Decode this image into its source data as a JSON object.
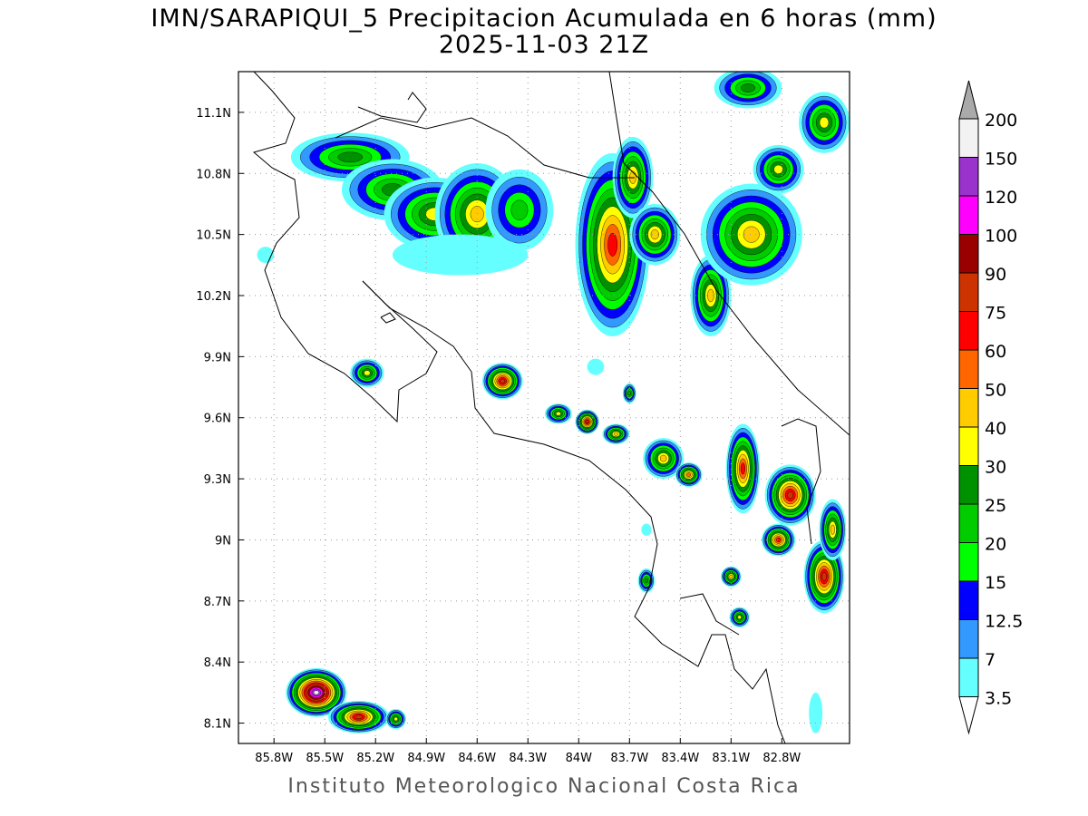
{
  "title": {
    "line1": "IMN/SARAPIQUI_5 Precipitacion Acumulada en 6 horas (mm)",
    "line2": "2025-11-03 21Z"
  },
  "footer": "Instituto Meteorologico Nacional Costa Rica",
  "map": {
    "lon_range": [
      -86.01,
      -82.4
    ],
    "lat_range": [
      8.0,
      11.3
    ],
    "lon_ticks": [
      {
        "v": -85.8,
        "label": "85.8W"
      },
      {
        "v": -85.5,
        "label": "85.5W"
      },
      {
        "v": -85.2,
        "label": "85.2W"
      },
      {
        "v": -84.9,
        "label": "84.9W"
      },
      {
        "v": -84.6,
        "label": "84.6W"
      },
      {
        "v": -84.3,
        "label": "84.3W"
      },
      {
        "v": -84.0,
        "label": "84W"
      },
      {
        "v": -83.7,
        "label": "83.7W"
      },
      {
        "v": -83.4,
        "label": "83.4W"
      },
      {
        "v": -83.1,
        "label": "83.1W"
      },
      {
        "v": -82.8,
        "label": "82.8W"
      }
    ],
    "lat_ticks": [
      {
        "v": 11.1,
        "label": "11.1N"
      },
      {
        "v": 10.8,
        "label": "10.8N"
      },
      {
        "v": 10.5,
        "label": "10.5N"
      },
      {
        "v": 10.2,
        "label": "10.2N"
      },
      {
        "v": 9.9,
        "label": "9.9N"
      },
      {
        "v": 9.6,
        "label": "9.6N"
      },
      {
        "v": 9.3,
        "label": "9.3N"
      },
      {
        "v": 9.0,
        "label": "9N"
      },
      {
        "v": 8.7,
        "label": "8.7N"
      },
      {
        "v": 8.4,
        "label": "8.4N"
      },
      {
        "v": 8.1,
        "label": "8.1N"
      }
    ],
    "grid": "dotted"
  },
  "colorbar": {
    "labels": [
      "200",
      "150",
      "120",
      "100",
      "90",
      "75",
      "60",
      "50",
      "40",
      "30",
      "25",
      "20",
      "15",
      "12.5",
      "7",
      "3.5"
    ],
    "thresholds": [
      3.5,
      7,
      12.5,
      15,
      20,
      25,
      30,
      40,
      50,
      60,
      75,
      90,
      100,
      120,
      150,
      200
    ],
    "colors": [
      "#66ffff",
      "#3399ff",
      "#0000ff",
      "#00ff00",
      "#00cc00",
      "#009100",
      "#ffff00",
      "#ffcc00",
      "#ff6600",
      "#ff0000",
      "#cc3300",
      "#990000",
      "#ff00ff",
      "#9933cc",
      "#f2f2f2"
    ],
    "over_color": "#aaaaaa",
    "under_color": "#ffffff"
  },
  "precip_cells": [
    {
      "lon": -85.35,
      "lat": 10.88,
      "peak": 25,
      "rx": 0.35,
      "ry": 0.12
    },
    {
      "lon": -85.1,
      "lat": 10.72,
      "peak": 25,
      "rx": 0.3,
      "ry": 0.15
    },
    {
      "lon": -84.85,
      "lat": 10.6,
      "peak": 30,
      "rx": 0.3,
      "ry": 0.18
    },
    {
      "lon": -84.6,
      "lat": 10.6,
      "peak": 45,
      "rx": 0.25,
      "ry": 0.25
    },
    {
      "lon": -84.35,
      "lat": 10.62,
      "peak": 20,
      "rx": 0.2,
      "ry": 0.2
    },
    {
      "lon": -84.7,
      "lat": 10.4,
      "peak": 5,
      "rx": 0.4,
      "ry": 0.1
    },
    {
      "lon": -83.8,
      "lat": 10.45,
      "peak": 60,
      "rx": 0.22,
      "ry": 0.45
    },
    {
      "lon": -83.68,
      "lat": 10.78,
      "peak": 45,
      "rx": 0.12,
      "ry": 0.2
    },
    {
      "lon": -83.55,
      "lat": 10.5,
      "peak": 40,
      "rx": 0.15,
      "ry": 0.15
    },
    {
      "lon": -83.22,
      "lat": 10.2,
      "peak": 40,
      "rx": 0.12,
      "ry": 0.2
    },
    {
      "lon": -82.98,
      "lat": 10.5,
      "peak": 40,
      "rx": 0.3,
      "ry": 0.25
    },
    {
      "lon": -82.82,
      "lat": 10.82,
      "peak": 35,
      "rx": 0.15,
      "ry": 0.12
    },
    {
      "lon": -82.55,
      "lat": 11.05,
      "peak": 30,
      "rx": 0.15,
      "ry": 0.15
    },
    {
      "lon": -83.0,
      "lat": 11.22,
      "peak": 25,
      "rx": 0.2,
      "ry": 0.1
    },
    {
      "lon": -85.25,
      "lat": 9.82,
      "peak": 30,
      "rx": 0.1,
      "ry": 0.07
    },
    {
      "lon": -84.45,
      "lat": 9.78,
      "peak": 75,
      "rx": 0.12,
      "ry": 0.09
    },
    {
      "lon": -84.12,
      "lat": 9.62,
      "peak": 30,
      "rx": 0.08,
      "ry": 0.05
    },
    {
      "lon": -83.95,
      "lat": 9.58,
      "peak": 75,
      "rx": 0.07,
      "ry": 0.06
    },
    {
      "lon": -83.78,
      "lat": 9.52,
      "peak": 40,
      "rx": 0.08,
      "ry": 0.05
    },
    {
      "lon": -83.5,
      "lat": 9.4,
      "peak": 40,
      "rx": 0.12,
      "ry": 0.1
    },
    {
      "lon": -83.35,
      "lat": 9.32,
      "peak": 50,
      "rx": 0.08,
      "ry": 0.06
    },
    {
      "lon": -83.03,
      "lat": 9.35,
      "peak": 60,
      "rx": 0.1,
      "ry": 0.22
    },
    {
      "lon": -82.75,
      "lat": 9.22,
      "peak": 75,
      "rx": 0.15,
      "ry": 0.15
    },
    {
      "lon": -82.82,
      "lat": 9.0,
      "peak": 60,
      "rx": 0.1,
      "ry": 0.08
    },
    {
      "lon": -82.55,
      "lat": 8.82,
      "peak": 75,
      "rx": 0.12,
      "ry": 0.18
    },
    {
      "lon": -82.5,
      "lat": 9.05,
      "peak": 40,
      "rx": 0.08,
      "ry": 0.15
    },
    {
      "lon": -83.1,
      "lat": 8.82,
      "peak": 40,
      "rx": 0.06,
      "ry": 0.05
    },
    {
      "lon": -83.05,
      "lat": 8.62,
      "peak": 30,
      "rx": 0.06,
      "ry": 0.05
    },
    {
      "lon": -83.6,
      "lat": 8.8,
      "peak": 25,
      "rx": 0.05,
      "ry": 0.06
    },
    {
      "lon": -85.55,
      "lat": 8.25,
      "peak": 150,
      "rx": 0.18,
      "ry": 0.12
    },
    {
      "lon": -85.3,
      "lat": 8.13,
      "peak": 75,
      "rx": 0.18,
      "ry": 0.08
    },
    {
      "lon": -85.08,
      "lat": 8.12,
      "peak": 30,
      "rx": 0.06,
      "ry": 0.05
    },
    {
      "lon": -85.85,
      "lat": 10.4,
      "peak": 5,
      "rx": 0.05,
      "ry": 0.04
    },
    {
      "lon": -83.7,
      "lat": 9.72,
      "peak": 25,
      "rx": 0.04,
      "ry": 0.05
    },
    {
      "lon": -83.9,
      "lat": 9.85,
      "peak": 5,
      "rx": 0.05,
      "ry": 0.04
    },
    {
      "lon": -83.6,
      "lat": 9.05,
      "peak": 5,
      "rx": 0.03,
      "ry": 0.03
    },
    {
      "lon": -82.6,
      "lat": 8.15,
      "peak": 5,
      "rx": 0.04,
      "ry": 0.1
    }
  ]
}
